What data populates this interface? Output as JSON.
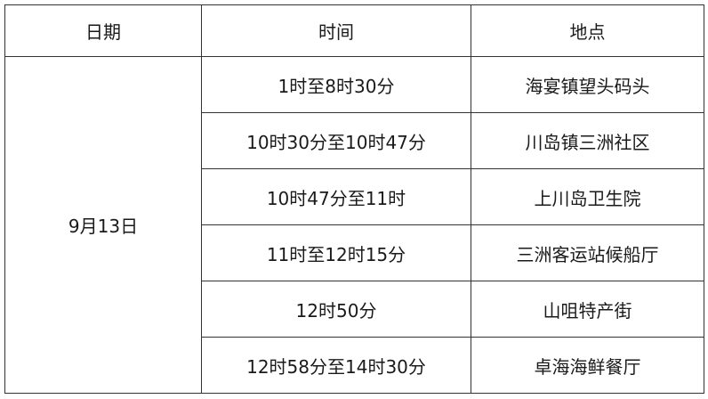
{
  "headers": {
    "date": "日期",
    "time": "时间",
    "place": "地点"
  },
  "date": "9月13日",
  "rows": [
    {
      "time": "1时至8时30分",
      "place": "海宴镇望头码头"
    },
    {
      "time": "10时30分至10时47分",
      "place": "川岛镇三洲社区"
    },
    {
      "time": "10时47分至11时",
      "place": "上川岛卫生院"
    },
    {
      "time": "11时至12时15分",
      "place": "三洲客运站候船厅"
    },
    {
      "time": "12时50分",
      "place": "山咀特产街"
    },
    {
      "time": "12时58分至14时30分",
      "place": "卓海海鲜餐厅"
    }
  ]
}
